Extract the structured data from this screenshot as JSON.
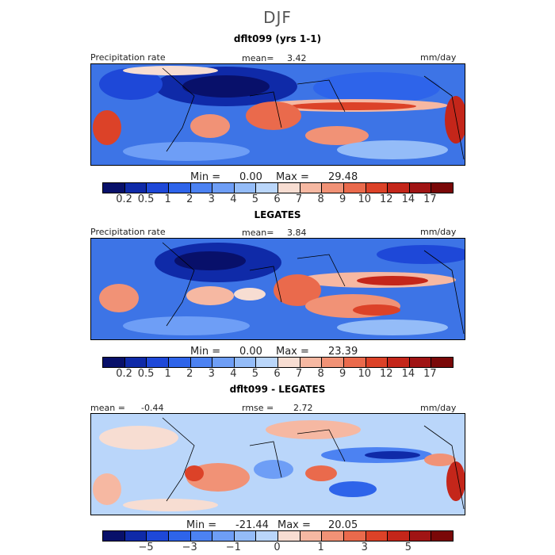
{
  "title": "DJF",
  "panels": [
    {
      "title": "dflt099 (yrs 1-1)",
      "left_label": "Precipitation rate",
      "mean_label": "mean=",
      "mean_value": "3.42",
      "units": "mm/day",
      "min_label": "Min =",
      "min_value": "0.00",
      "max_label": "Max =",
      "max_value": "29.48"
    },
    {
      "title": "LEGATES",
      "left_label": "Precipitation rate",
      "mean_label": "mean=",
      "mean_value": "3.84",
      "units": "mm/day",
      "min_label": "Min =",
      "min_value": "0.00",
      "max_label": "Max =",
      "max_value": "23.39"
    },
    {
      "title": "dflt099 - LEGATES",
      "mean_label": "mean =",
      "mean_value": "-0.44",
      "rmse_label": "rmse =",
      "rmse_value": "2.72",
      "units": "mm/day",
      "min_label": "Min =",
      "min_value": "-21.44",
      "max_label": "Max =",
      "max_value": "20.05"
    }
  ],
  "colorbar_precip": {
    "colors": [
      "#08106a",
      "#0f2aa8",
      "#1e48d8",
      "#2e64ea",
      "#4c82f2",
      "#6e9ef6",
      "#94bcf8",
      "#bad6fa",
      "#f7ddd2",
      "#f6b8a2",
      "#f19276",
      "#ea6a4c",
      "#dc4228",
      "#c4261a",
      "#a01414",
      "#7a0808"
    ],
    "ticks": [
      "0.2",
      "0.5",
      "1",
      "2",
      "3",
      "4",
      "5",
      "6",
      "7",
      "8",
      "9",
      "10",
      "12",
      "14",
      "17"
    ]
  },
  "colorbar_diff": {
    "colors": [
      "#08106a",
      "#0f2aa8",
      "#1e48d8",
      "#2e64ea",
      "#4c82f2",
      "#6e9ef6",
      "#94bcf8",
      "#bad6fa",
      "#f7ddd2",
      "#f6b8a2",
      "#f19276",
      "#ea6a4c",
      "#dc4228",
      "#c4261a",
      "#a01414",
      "#7a0808"
    ],
    "ticks": [
      "-5",
      "-3",
      "-1",
      "0",
      "1",
      "3",
      "5"
    ]
  }
}
